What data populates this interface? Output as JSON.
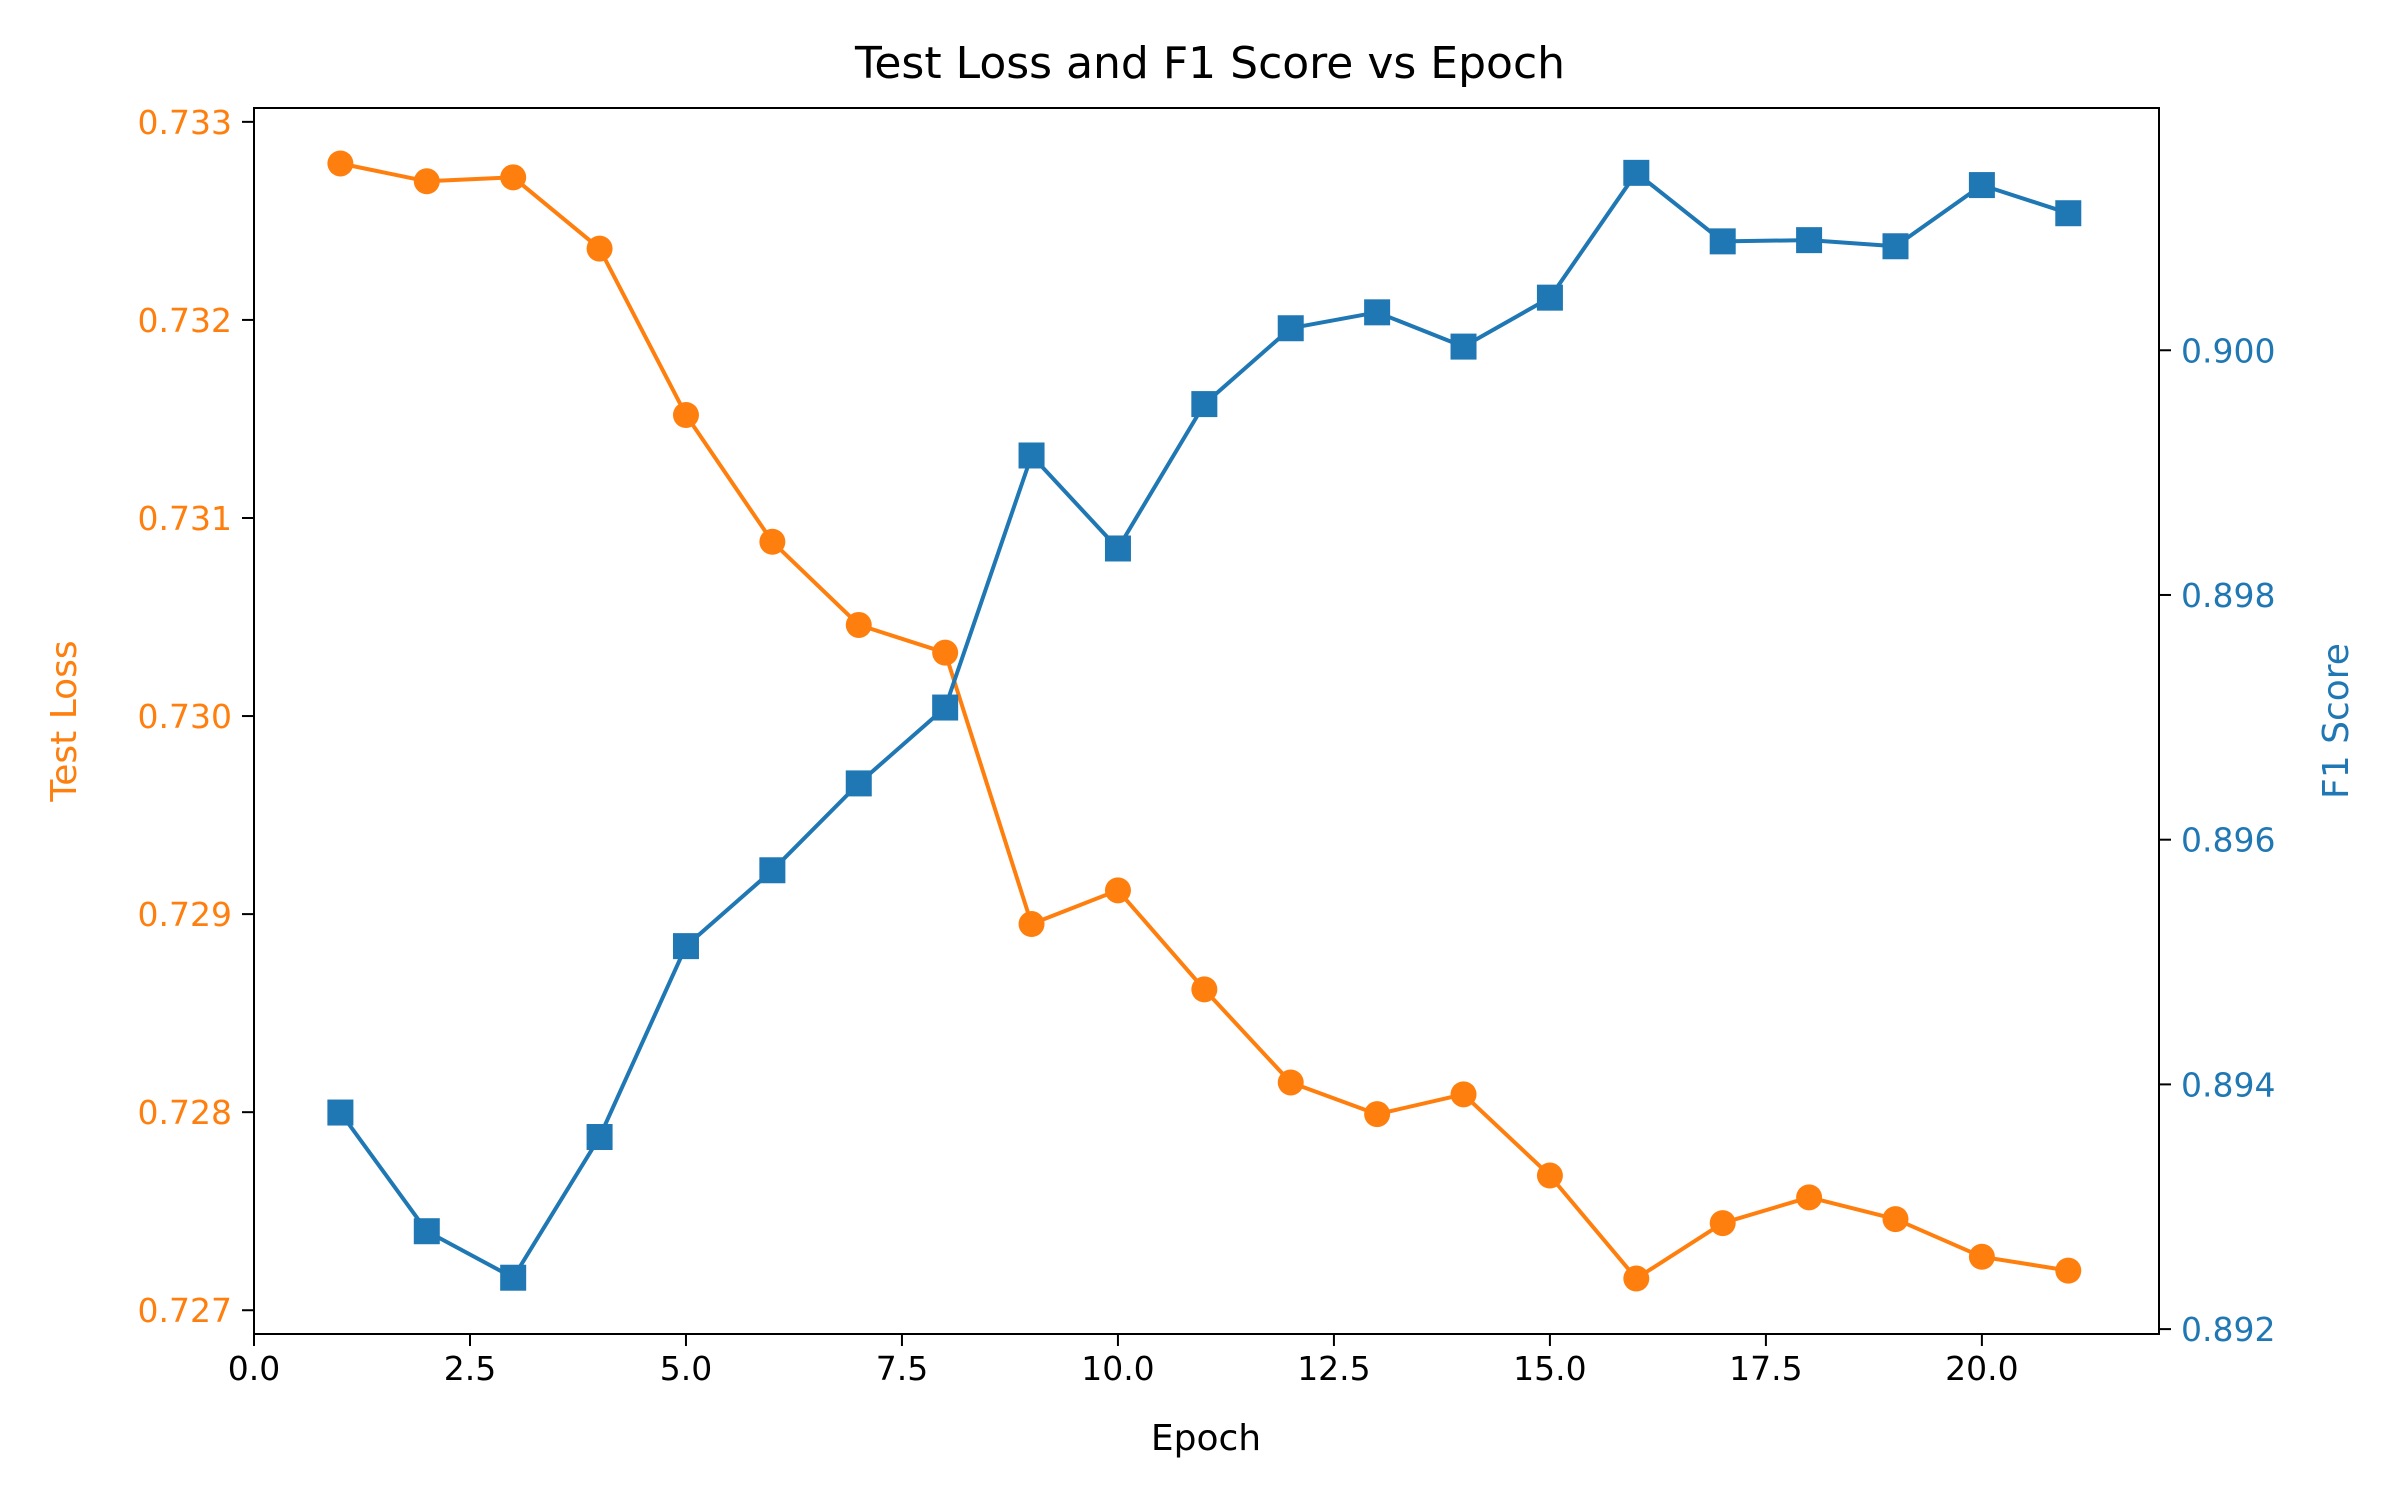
{
  "colors": {
    "loss": "#ff7f0e",
    "f1": "#1f77b4",
    "axis": "#000000",
    "background": "#ffffff"
  },
  "chart_data": {
    "type": "line",
    "title": "Test Loss and F1 Score vs Epoch",
    "xlabel": "Epoch",
    "ylabel_left": "Test Loss",
    "ylabel_right": "F1 Score",
    "grid": false,
    "legend": "none",
    "xlim": [
      0,
      22.05
    ],
    "ylim_left": [
      0.72688,
      0.73307
    ],
    "ylim_right": [
      0.89196,
      0.90198
    ],
    "x_ticks": [
      0.0,
      2.5,
      5.0,
      7.5,
      10.0,
      12.5,
      15.0,
      17.5,
      20.0
    ],
    "x_tick_labels": [
      "0.0",
      "2.5",
      "5.0",
      "7.5",
      "10.0",
      "12.5",
      "15.0",
      "17.5",
      "20.0"
    ],
    "y_left_ticks": [
      0.727,
      0.728,
      0.729,
      0.73,
      0.731,
      0.732,
      0.733
    ],
    "y_left_tick_labels": [
      "0.727",
      "0.728",
      "0.729",
      "0.730",
      "0.731",
      "0.732",
      "0.733"
    ],
    "y_right_ticks": [
      0.892,
      0.894,
      0.896,
      0.898,
      0.9
    ],
    "y_right_tick_labels": [
      "0.892",
      "0.894",
      "0.896",
      "0.898",
      "0.900"
    ],
    "x": [
      1,
      2,
      3,
      4,
      5,
      6,
      7,
      8,
      9,
      10,
      11,
      12,
      13,
      14,
      15,
      16,
      17,
      18,
      19,
      20,
      21
    ],
    "series": [
      {
        "axis": "left",
        "marker": "circle",
        "color": "#ff7f0e",
        "values": [
          0.73279,
          0.7327,
          0.73272,
          0.73236,
          0.73152,
          0.73088,
          0.73046,
          0.73032,
          0.72895,
          0.72912,
          0.72862,
          0.72815,
          0.72799,
          0.72809,
          0.72768,
          0.72716,
          0.72744,
          0.72757,
          0.72746,
          0.72727,
          0.7272
        ]
      },
      {
        "axis": "right",
        "marker": "square",
        "color": "#1f77b4",
        "values": [
          0.89377,
          0.8928,
          0.89242,
          0.89357,
          0.89513,
          0.89575,
          0.89646,
          0.89708,
          0.89914,
          0.89838,
          0.89956,
          0.90018,
          0.90031,
          0.90003,
          0.90043,
          0.90145,
          0.90089,
          0.9009,
          0.90085,
          0.90135,
          0.90112
        ]
      }
    ]
  }
}
